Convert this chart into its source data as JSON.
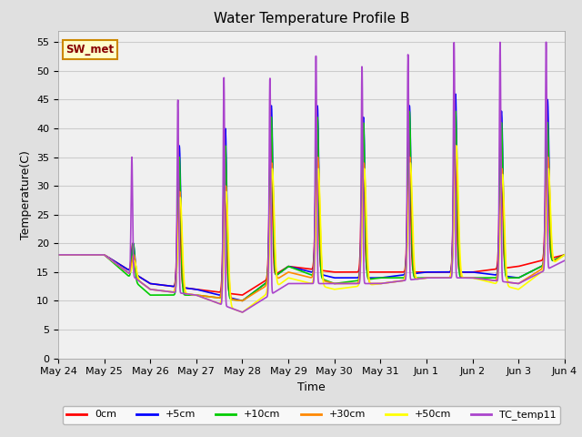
{
  "title": "Water Temperature Profile B",
  "xlabel": "Time",
  "ylabel": "Temperature(C)",
  "ylim": [
    0,
    57
  ],
  "yticks": [
    0,
    5,
    10,
    15,
    20,
    25,
    30,
    35,
    40,
    45,
    50,
    55
  ],
  "fig_bg": "#e0e0e0",
  "ax_bg": "#f0f0f0",
  "annotation_text": "SW_met",
  "annotation_bg": "#ffffcc",
  "annotation_border": "#cc8800",
  "annotation_text_color": "#880000",
  "series": [
    {
      "label": "0cm",
      "color": "#ff0000"
    },
    {
      "label": "+5cm",
      "color": "#0000ff"
    },
    {
      "label": "+10cm",
      "color": "#00cc00"
    },
    {
      "label": "+30cm",
      "color": "#ff8800"
    },
    {
      "label": "+50cm",
      "color": "#ffff00"
    },
    {
      "label": "TC_temp11",
      "color": "#aa44cc"
    }
  ],
  "xtick_labels": [
    "May 24",
    "May 25",
    "May 26",
    "May 27",
    "May 28",
    "May 29",
    "May 30",
    "May 31",
    "Jun 1",
    "Jun 2",
    "Jun 3",
    "Jun 4"
  ],
  "n_days": 11,
  "lw": 1.2,
  "peak_sharpness": 14
}
